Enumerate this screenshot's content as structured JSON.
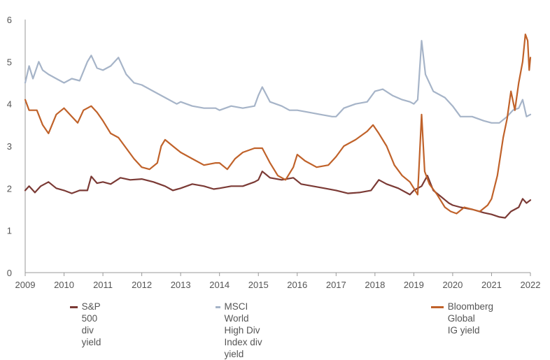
{
  "chart_data": {
    "type": "line",
    "title": "",
    "xlabel": "",
    "ylabel": "",
    "xlim": [
      2009,
      2022
    ],
    "ylim": [
      0,
      6
    ],
    "x_ticks": [
      "2009",
      "2010",
      "2011",
      "2012",
      "2013",
      "2014",
      "2015",
      "2016",
      "2017",
      "2018",
      "2019",
      "2020",
      "2021",
      "2022"
    ],
    "y_ticks": [
      "0",
      "1",
      "2",
      "3",
      "4",
      "5",
      "6"
    ],
    "grid": false,
    "legend_position": "bottom",
    "series": [
      {
        "name": "S&P 500 div yield",
        "color": "#7b3a35",
        "points": [
          [
            2009.0,
            1.95
          ],
          [
            2009.1,
            2.05
          ],
          [
            2009.25,
            1.9
          ],
          [
            2009.4,
            2.05
          ],
          [
            2009.6,
            2.15
          ],
          [
            2009.8,
            2.0
          ],
          [
            2010.0,
            1.95
          ],
          [
            2010.2,
            1.88
          ],
          [
            2010.4,
            1.95
          ],
          [
            2010.6,
            1.95
          ],
          [
            2010.7,
            2.28
          ],
          [
            2010.85,
            2.12
          ],
          [
            2011.0,
            2.15
          ],
          [
            2011.2,
            2.1
          ],
          [
            2011.45,
            2.25
          ],
          [
            2011.7,
            2.2
          ],
          [
            2012.0,
            2.22
          ],
          [
            2012.3,
            2.15
          ],
          [
            2012.6,
            2.05
          ],
          [
            2012.8,
            1.95
          ],
          [
            2013.0,
            2.0
          ],
          [
            2013.3,
            2.1
          ],
          [
            2013.6,
            2.05
          ],
          [
            2013.85,
            1.98
          ],
          [
            2014.0,
            2.0
          ],
          [
            2014.3,
            2.05
          ],
          [
            2014.6,
            2.05
          ],
          [
            2014.9,
            2.15
          ],
          [
            2015.0,
            2.2
          ],
          [
            2015.1,
            2.4
          ],
          [
            2015.3,
            2.25
          ],
          [
            2015.6,
            2.2
          ],
          [
            2015.9,
            2.25
          ],
          [
            2016.1,
            2.1
          ],
          [
            2016.4,
            2.05
          ],
          [
            2016.7,
            2.0
          ],
          [
            2017.0,
            1.95
          ],
          [
            2017.3,
            1.88
          ],
          [
            2017.6,
            1.9
          ],
          [
            2017.9,
            1.95
          ],
          [
            2018.1,
            2.2
          ],
          [
            2018.3,
            2.1
          ],
          [
            2018.6,
            2.0
          ],
          [
            2018.9,
            1.85
          ],
          [
            2019.0,
            1.95
          ],
          [
            2019.2,
            2.05
          ],
          [
            2019.35,
            2.3
          ],
          [
            2019.5,
            1.95
          ],
          [
            2019.7,
            1.8
          ],
          [
            2019.9,
            1.65
          ],
          [
            2020.0,
            1.6
          ],
          [
            2020.2,
            1.55
          ],
          [
            2020.5,
            1.5
          ],
          [
            2020.8,
            1.42
          ],
          [
            2021.0,
            1.38
          ],
          [
            2021.2,
            1.32
          ],
          [
            2021.35,
            1.3
          ],
          [
            2021.5,
            1.45
          ],
          [
            2021.7,
            1.55
          ],
          [
            2021.8,
            1.75
          ],
          [
            2021.9,
            1.65
          ],
          [
            2022.0,
            1.72
          ]
        ]
      },
      {
        "name": "MSCI World High Div Index div yield",
        "color": "#a6b4c8",
        "points": [
          [
            2009.0,
            4.5
          ],
          [
            2009.1,
            4.9
          ],
          [
            2009.2,
            4.6
          ],
          [
            2009.35,
            5.0
          ],
          [
            2009.45,
            4.8
          ],
          [
            2009.6,
            4.7
          ],
          [
            2009.8,
            4.6
          ],
          [
            2010.0,
            4.5
          ],
          [
            2010.2,
            4.6
          ],
          [
            2010.4,
            4.55
          ],
          [
            2010.6,
            5.0
          ],
          [
            2010.7,
            5.15
          ],
          [
            2010.85,
            4.85
          ],
          [
            2011.0,
            4.8
          ],
          [
            2011.2,
            4.9
          ],
          [
            2011.4,
            5.1
          ],
          [
            2011.6,
            4.7
          ],
          [
            2011.8,
            4.5
          ],
          [
            2012.0,
            4.45
          ],
          [
            2012.3,
            4.3
          ],
          [
            2012.6,
            4.15
          ],
          [
            2012.9,
            4.0
          ],
          [
            2013.0,
            4.05
          ],
          [
            2013.3,
            3.95
          ],
          [
            2013.6,
            3.9
          ],
          [
            2013.9,
            3.9
          ],
          [
            2014.0,
            3.85
          ],
          [
            2014.3,
            3.95
          ],
          [
            2014.6,
            3.9
          ],
          [
            2014.9,
            3.95
          ],
          [
            2015.0,
            4.2
          ],
          [
            2015.1,
            4.4
          ],
          [
            2015.3,
            4.05
          ],
          [
            2015.6,
            3.95
          ],
          [
            2015.8,
            3.85
          ],
          [
            2016.0,
            3.85
          ],
          [
            2016.3,
            3.8
          ],
          [
            2016.6,
            3.75
          ],
          [
            2016.9,
            3.7
          ],
          [
            2017.0,
            3.7
          ],
          [
            2017.2,
            3.9
          ],
          [
            2017.5,
            4.0
          ],
          [
            2017.8,
            4.05
          ],
          [
            2018.0,
            4.3
          ],
          [
            2018.2,
            4.35
          ],
          [
            2018.45,
            4.2
          ],
          [
            2018.7,
            4.1
          ],
          [
            2018.9,
            4.05
          ],
          [
            2019.0,
            4.0
          ],
          [
            2019.1,
            4.1
          ],
          [
            2019.2,
            5.5
          ],
          [
            2019.3,
            4.7
          ],
          [
            2019.5,
            4.3
          ],
          [
            2019.8,
            4.15
          ],
          [
            2020.0,
            3.95
          ],
          [
            2020.2,
            3.7
          ],
          [
            2020.5,
            3.7
          ],
          [
            2020.8,
            3.6
          ],
          [
            2021.0,
            3.55
          ],
          [
            2021.2,
            3.55
          ],
          [
            2021.4,
            3.7
          ],
          [
            2021.55,
            3.85
          ],
          [
            2021.7,
            3.9
          ],
          [
            2021.8,
            4.1
          ],
          [
            2021.9,
            3.7
          ],
          [
            2022.0,
            3.75
          ]
        ]
      },
      {
        "name": "Bloomberg Global IG yield",
        "color": "#c0622a",
        "points": [
          [
            2009.0,
            4.1
          ],
          [
            2009.1,
            3.85
          ],
          [
            2009.3,
            3.85
          ],
          [
            2009.45,
            3.5
          ],
          [
            2009.6,
            3.3
          ],
          [
            2009.8,
            3.75
          ],
          [
            2010.0,
            3.9
          ],
          [
            2010.2,
            3.7
          ],
          [
            2010.35,
            3.55
          ],
          [
            2010.5,
            3.85
          ],
          [
            2010.7,
            3.95
          ],
          [
            2010.85,
            3.8
          ],
          [
            2011.0,
            3.6
          ],
          [
            2011.2,
            3.3
          ],
          [
            2011.4,
            3.2
          ],
          [
            2011.6,
            2.95
          ],
          [
            2011.8,
            2.7
          ],
          [
            2012.0,
            2.5
          ],
          [
            2012.2,
            2.45
          ],
          [
            2012.4,
            2.6
          ],
          [
            2012.5,
            3.0
          ],
          [
            2012.6,
            3.15
          ],
          [
            2012.8,
            3.0
          ],
          [
            2013.0,
            2.85
          ],
          [
            2013.3,
            2.7
          ],
          [
            2013.6,
            2.55
          ],
          [
            2013.9,
            2.6
          ],
          [
            2014.0,
            2.6
          ],
          [
            2014.2,
            2.45
          ],
          [
            2014.4,
            2.7
          ],
          [
            2014.6,
            2.85
          ],
          [
            2014.9,
            2.95
          ],
          [
            2015.1,
            2.95
          ],
          [
            2015.3,
            2.6
          ],
          [
            2015.5,
            2.3
          ],
          [
            2015.7,
            2.2
          ],
          [
            2015.9,
            2.5
          ],
          [
            2016.0,
            2.8
          ],
          [
            2016.2,
            2.65
          ],
          [
            2016.5,
            2.5
          ],
          [
            2016.8,
            2.55
          ],
          [
            2017.0,
            2.75
          ],
          [
            2017.2,
            3.0
          ],
          [
            2017.5,
            3.15
          ],
          [
            2017.8,
            3.35
          ],
          [
            2017.95,
            3.5
          ],
          [
            2018.1,
            3.3
          ],
          [
            2018.3,
            3.0
          ],
          [
            2018.5,
            2.55
          ],
          [
            2018.7,
            2.3
          ],
          [
            2018.9,
            2.15
          ],
          [
            2019.0,
            2.0
          ],
          [
            2019.1,
            1.85
          ],
          [
            2019.2,
            3.75
          ],
          [
            2019.28,
            2.4
          ],
          [
            2019.4,
            2.1
          ],
          [
            2019.6,
            1.85
          ],
          [
            2019.8,
            1.55
          ],
          [
            2019.95,
            1.45
          ],
          [
            2020.1,
            1.4
          ],
          [
            2020.3,
            1.55
          ],
          [
            2020.5,
            1.5
          ],
          [
            2020.7,
            1.45
          ],
          [
            2020.9,
            1.6
          ],
          [
            2021.0,
            1.75
          ],
          [
            2021.15,
            2.3
          ],
          [
            2021.3,
            3.2
          ],
          [
            2021.4,
            3.65
          ],
          [
            2021.5,
            4.3
          ],
          [
            2021.6,
            3.85
          ],
          [
            2021.7,
            4.5
          ],
          [
            2021.8,
            5.0
          ],
          [
            2021.87,
            5.65
          ],
          [
            2021.93,
            5.5
          ],
          [
            2021.97,
            4.8
          ],
          [
            2022.0,
            5.1
          ]
        ]
      }
    ]
  },
  "legend": [
    {
      "label_lines": [
        "S&P 500 div yield"
      ]
    },
    {
      "label_lines": [
        "MSCI World High Div Index div yield"
      ]
    },
    {
      "label_lines": [
        "Bloomberg Global",
        "IG yield"
      ]
    }
  ]
}
